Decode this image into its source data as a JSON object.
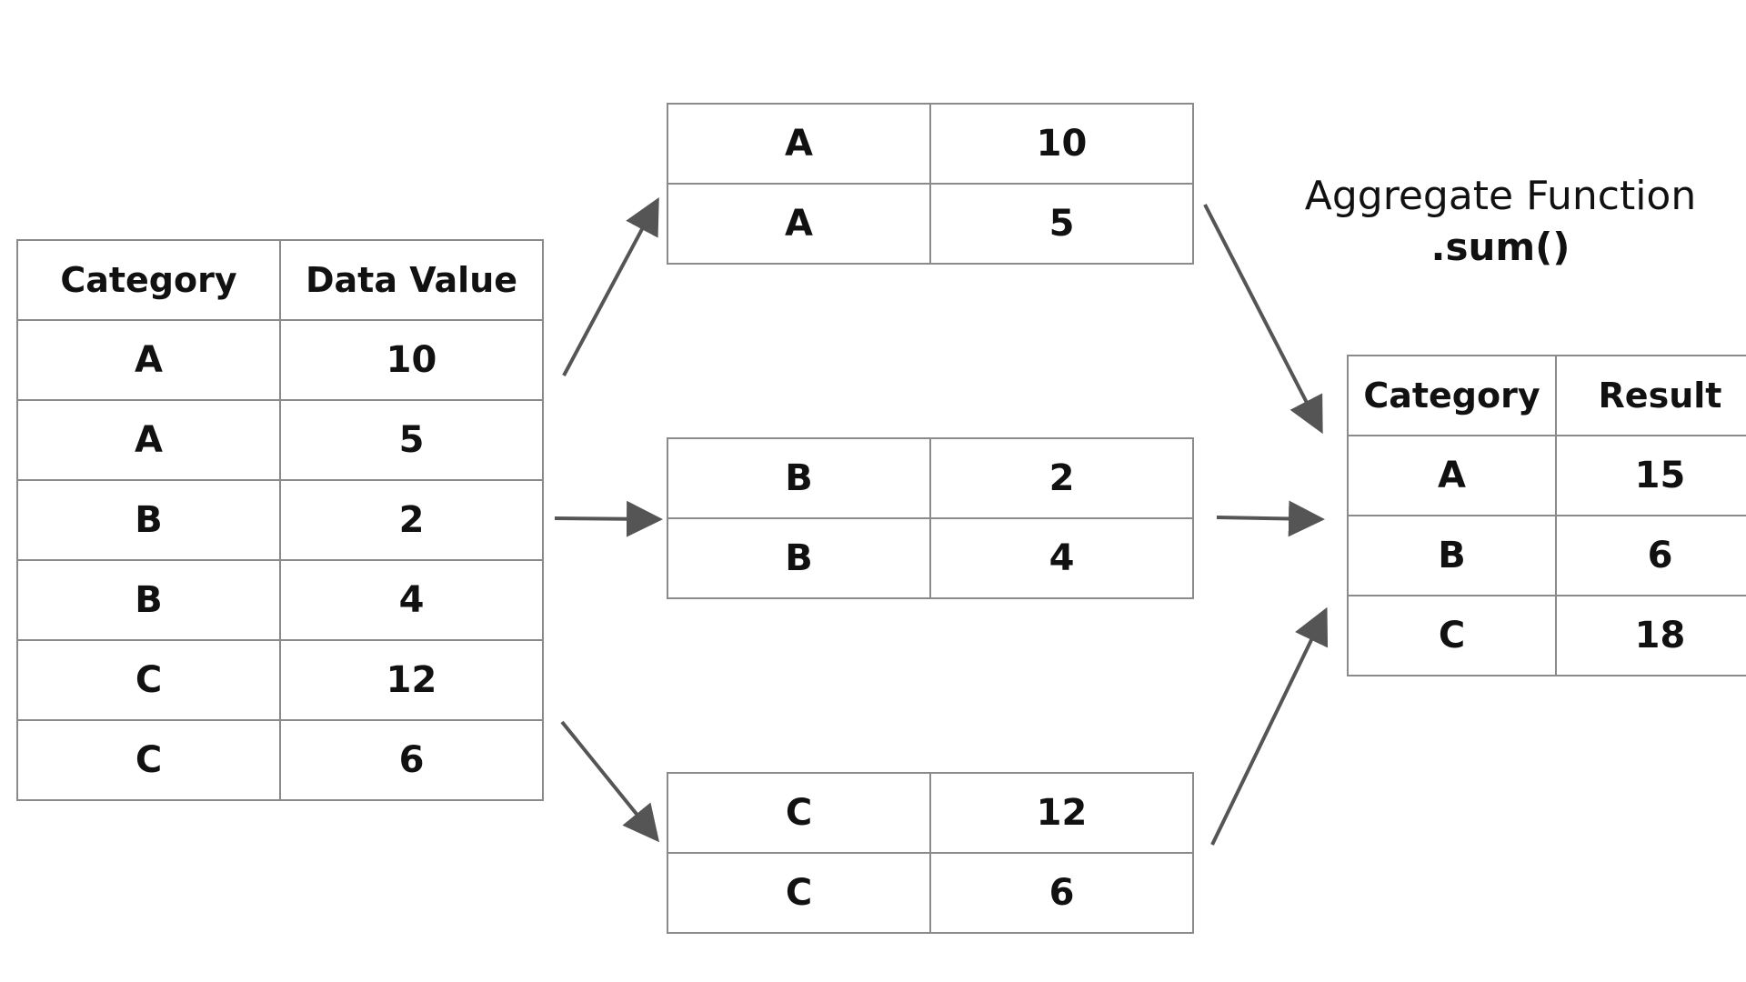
{
  "source_table": {
    "headers": [
      "Category",
      "Data Value"
    ],
    "rows": [
      [
        "A",
        "10"
      ],
      [
        "A",
        "5"
      ],
      [
        "B",
        "2"
      ],
      [
        "B",
        "4"
      ],
      [
        "C",
        "12"
      ],
      [
        "C",
        "6"
      ]
    ]
  },
  "groups": [
    {
      "rows": [
        [
          "A",
          "10"
        ],
        [
          "A",
          "5"
        ]
      ]
    },
    {
      "rows": [
        [
          "B",
          "2"
        ],
        [
          "B",
          "4"
        ]
      ]
    },
    {
      "rows": [
        [
          "C",
          "12"
        ],
        [
          "C",
          "6"
        ]
      ]
    }
  ],
  "aggregate": {
    "title": "Aggregate Function",
    "function": ".sum()"
  },
  "result_table": {
    "headers": [
      "Category",
      "Result"
    ],
    "rows": [
      [
        "A",
        "15"
      ],
      [
        "B",
        "6"
      ],
      [
        "C",
        "18"
      ]
    ]
  },
  "colors": {
    "arrow": "#555555",
    "border": "#8a8a8a",
    "text": "#111111"
  }
}
